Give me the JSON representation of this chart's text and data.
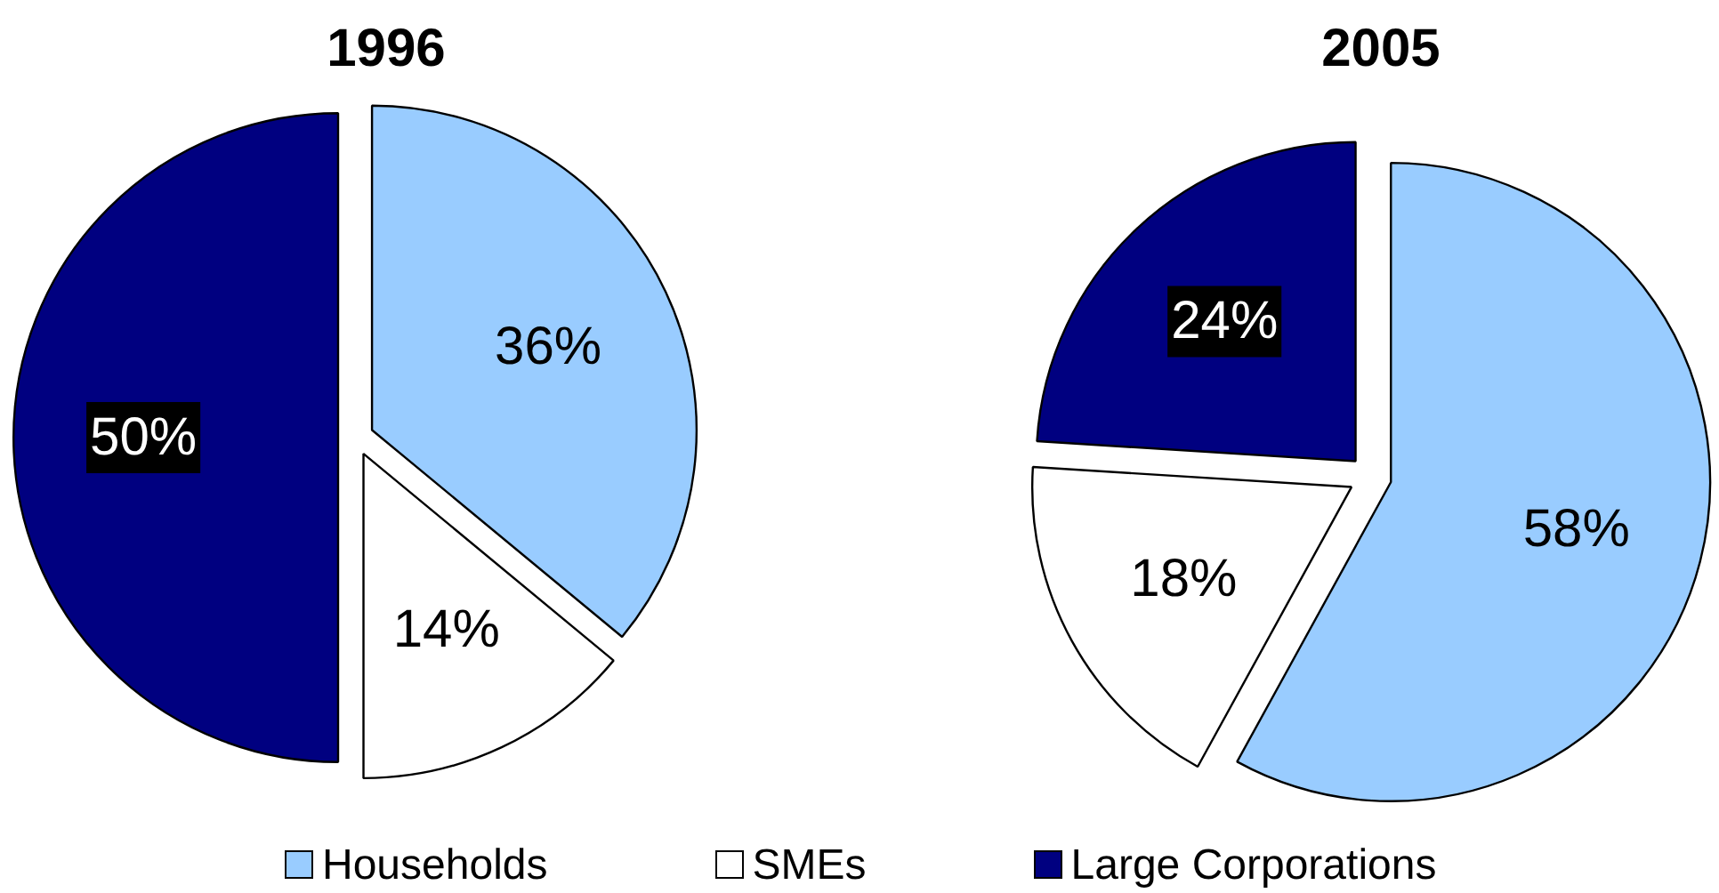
{
  "chart_data": {
    "type": "pie",
    "categories": [
      "Households",
      "SMEs",
      "Large Corporations"
    ],
    "colors": [
      "#99ccff",
      "#ffffff",
      "#000080"
    ],
    "series": [
      {
        "name": "1996",
        "values": [
          36,
          14,
          50
        ],
        "value_labels": [
          "36%",
          "14%",
          "50%"
        ]
      },
      {
        "name": "2005",
        "values": [
          58,
          18,
          24
        ],
        "value_labels": [
          "58%",
          "18%",
          "24%"
        ]
      }
    ],
    "legend": "bottom"
  }
}
